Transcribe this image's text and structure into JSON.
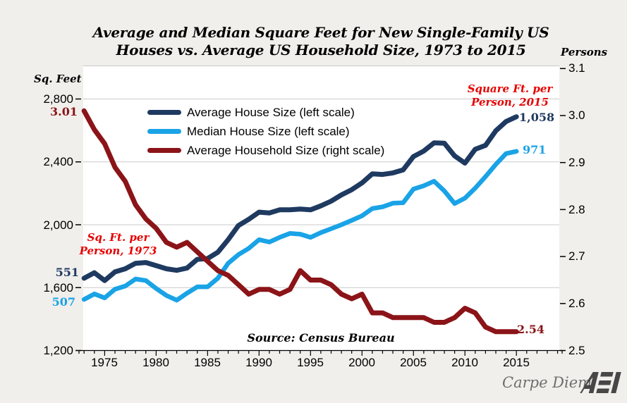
{
  "title": {
    "line1": "Average and Median Square Feet for New Single-Family US",
    "line2": "Houses vs. Average US Household Size, 1973 to 2015"
  },
  "source_note": "Source: Census Bureau",
  "footer": {
    "credit": "Carpe Diem",
    "logo": "AEI"
  },
  "colors": {
    "background": "#f0efec",
    "plot_background": "#ffffff",
    "gridline": "#cbcbcb",
    "annotation_red": "#e60000",
    "navy": "#1f3a60",
    "sky_blue": "#1aa3e6",
    "dark_red": "#8b1418"
  },
  "chart_data": {
    "type": "line",
    "title": "Average and Median Square Feet for New Single-Family US Houses vs. Average US Household Size, 1973 to 2015",
    "x_start": 1973,
    "x_end": 2015,
    "grid": "horizontal",
    "legend_position": "top-left-inside",
    "x_axis": {
      "tick_labels": [
        "1975",
        "1980",
        "1985",
        "1990",
        "1995",
        "2000",
        "2005",
        "2010",
        "2015"
      ],
      "tick_values": [
        1975,
        1980,
        1985,
        1990,
        1995,
        2000,
        2005,
        2010,
        2015
      ],
      "minor_tick_every_year": true
    },
    "left_axis": {
      "title": "Sq. Feet",
      "min": 1200,
      "max": 2800,
      "tick_labels": [
        "2,800",
        "2,400",
        "2,000",
        "1,600",
        "1,200"
      ],
      "tick_values": [
        2800,
        2400,
        2000,
        1600,
        1200
      ]
    },
    "right_axis": {
      "title": "Persons",
      "min": 2.5,
      "max": 3.1,
      "tick_labels": [
        "3.1",
        "3.0",
        "2.9",
        "2.8",
        "2.7",
        "2.6",
        "2.5"
      ],
      "tick_values": [
        3.1,
        3.0,
        2.9,
        2.8,
        2.7,
        2.6,
        2.5
      ]
    },
    "series": [
      {
        "name": "Average House Size (left scale)",
        "axis": "left",
        "color": "#1f3a60",
        "values": [
          1660,
          1695,
          1645,
          1700,
          1720,
          1755,
          1760,
          1740,
          1720,
          1710,
          1725,
          1780,
          1785,
          1825,
          1905,
          1995,
          2035,
          2080,
          2075,
          2095,
          2095,
          2100,
          2095,
          2120,
          2150,
          2190,
          2223,
          2266,
          2324,
          2320,
          2330,
          2349,
          2434,
          2469,
          2521,
          2519,
          2438,
          2392,
          2480,
          2505,
          2598,
          2657,
          2687
        ]
      },
      {
        "name": "Median House Size (left scale)",
        "axis": "left",
        "color": "#1aa3e6",
        "values": [
          1525,
          1560,
          1535,
          1590,
          1610,
          1655,
          1645,
          1595,
          1550,
          1520,
          1565,
          1605,
          1605,
          1660,
          1755,
          1810,
          1850,
          1905,
          1890,
          1920,
          1945,
          1940,
          1920,
          1950,
          1975,
          2000,
          2028,
          2057,
          2103,
          2114,
          2137,
          2140,
          2227,
          2248,
          2277,
          2215,
          2135,
          2169,
          2233,
          2306,
          2384,
          2453,
          2467
        ]
      },
      {
        "name": "Average Household Size (right scale)",
        "axis": "right",
        "color": "#8b1418",
        "values": [
          3.01,
          2.97,
          2.94,
          2.89,
          2.86,
          2.81,
          2.78,
          2.76,
          2.73,
          2.72,
          2.73,
          2.71,
          2.69,
          2.67,
          2.66,
          2.64,
          2.62,
          2.63,
          2.63,
          2.62,
          2.63,
          2.67,
          2.65,
          2.65,
          2.64,
          2.62,
          2.61,
          2.62,
          2.58,
          2.58,
          2.57,
          2.57,
          2.57,
          2.57,
          2.56,
          2.56,
          2.57,
          2.59,
          2.58,
          2.55,
          2.54,
          2.54,
          2.54
        ]
      }
    ],
    "annotations": {
      "household_1973": "3.01",
      "household_2015": "2.54",
      "sqft_per_person_avg_1973": "551",
      "sqft_per_person_median_1973": "507",
      "sqft_per_person_avg_2015": "1,058",
      "sqft_per_person_median_2015": "971",
      "note_1973_line1": "Sq. Ft. per",
      "note_1973_line2": "Person, 1973",
      "note_2015_line1": "Square Ft. per",
      "note_2015_line2": "Person, 2015"
    }
  }
}
